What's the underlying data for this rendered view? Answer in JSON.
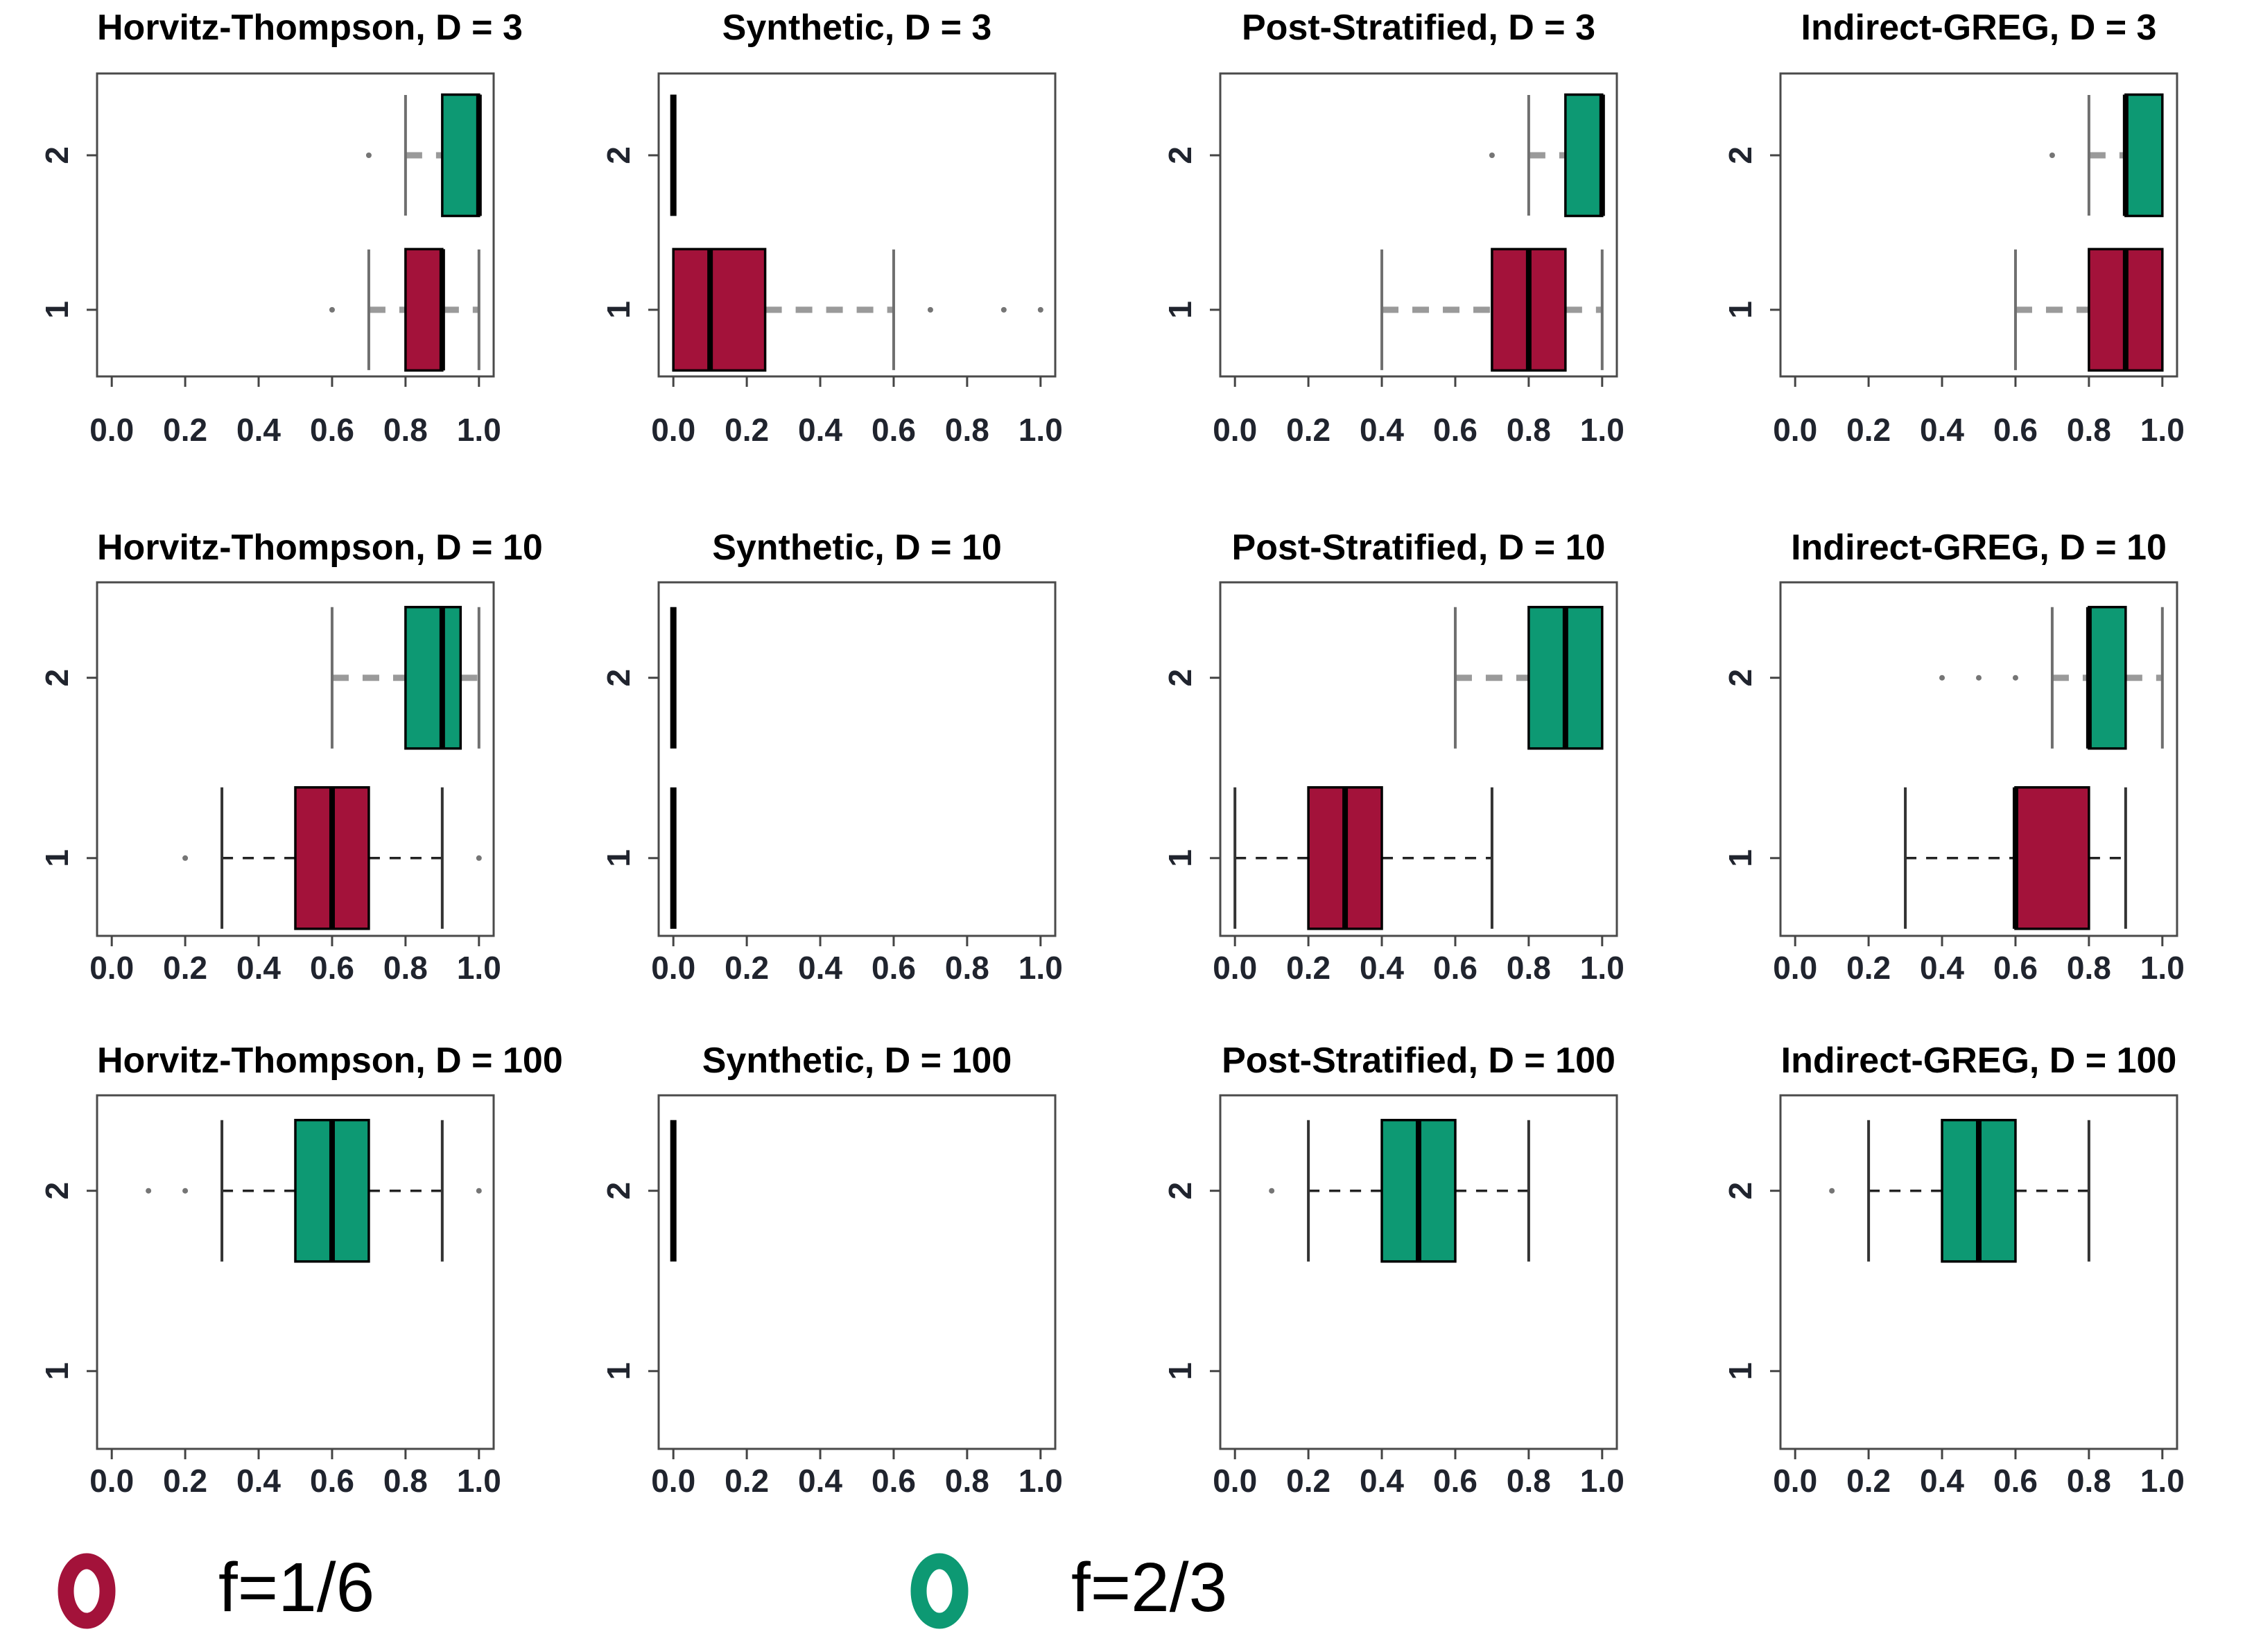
{
  "chart_data": {
    "type": "boxplot",
    "layout": "3x4 grid of horizontal boxplot panels",
    "x_ticks": [
      "0.0",
      "0.2",
      "0.4",
      "0.6",
      "0.8",
      "1.0"
    ],
    "x_range": [
      0,
      1
    ],
    "y_tick_labels": [
      "2",
      "1"
    ],
    "grid": false,
    "colors": {
      "f_1_6": "#A3123A",
      "f_2_3": "#0D9973",
      "degenerate": "#000000"
    },
    "legend": {
      "position": "bottom",
      "items": [
        {
          "label": "f=1/6",
          "color": "#A3123A"
        },
        {
          "label": "f=2/3",
          "color": "#0D9973"
        }
      ]
    },
    "panels": [
      {
        "title": "Horvitz-Thompson, D = 3",
        "estimator": "Horvitz-Thompson",
        "D": 3,
        "boxes": [
          {
            "group": "2",
            "series": "f=2/3",
            "color": "#0D9973",
            "q1": 0.9,
            "median": 1.0,
            "q3": 1.0,
            "whisker_low": 0.8,
            "whisker_high": null,
            "outliers": [
              0.7
            ],
            "whisker_style": "gray-thick"
          },
          {
            "group": "1",
            "series": "f=1/6",
            "color": "#A3123A",
            "q1": 0.8,
            "median": 0.9,
            "q3": 0.9,
            "whisker_low": 0.7,
            "whisker_high": 1.0,
            "outliers": [
              0.6
            ],
            "whisker_style": "gray-thick"
          }
        ]
      },
      {
        "title": "Synthetic, D = 3",
        "estimator": "Synthetic",
        "D": 3,
        "boxes": [
          {
            "group": "2",
            "series": "f=2/3",
            "degenerate": 0.0
          },
          {
            "group": "1",
            "series": "f=1/6",
            "color": "#A3123A",
            "q1": 0.0,
            "median": 0.1,
            "q3": 0.25,
            "whisker_low": null,
            "whisker_high": 0.6,
            "outliers": [
              0.7,
              0.9,
              1.0
            ],
            "whisker_style": "gray-thick"
          }
        ]
      },
      {
        "title": "Post-Stratified, D = 3",
        "estimator": "Post-Stratified",
        "D": 3,
        "boxes": [
          {
            "group": "2",
            "series": "f=2/3",
            "color": "#0D9973",
            "q1": 0.9,
            "median": 1.0,
            "q3": 1.0,
            "whisker_low": 0.8,
            "whisker_high": null,
            "outliers": [
              0.7
            ],
            "whisker_style": "gray-thick"
          },
          {
            "group": "1",
            "series": "f=1/6",
            "color": "#A3123A",
            "q1": 0.7,
            "median": 0.8,
            "q3": 0.9,
            "whisker_low": 0.4,
            "whisker_high": 1.0,
            "outliers": [],
            "whisker_style": "gray-thick"
          }
        ]
      },
      {
        "title": "Indirect-GREG, D = 3",
        "estimator": "Indirect-GREG",
        "D": 3,
        "boxes": [
          {
            "group": "2",
            "series": "f=2/3",
            "color": "#0D9973",
            "q1": 0.9,
            "median": 0.9,
            "q3": 1.0,
            "whisker_low": 0.8,
            "whisker_high": null,
            "outliers": [
              0.7
            ],
            "whisker_style": "gray-thick"
          },
          {
            "group": "1",
            "series": "f=1/6",
            "color": "#A3123A",
            "q1": 0.8,
            "median": 0.9,
            "q3": 1.0,
            "whisker_low": 0.6,
            "whisker_high": null,
            "outliers": [],
            "whisker_style": "gray-thick"
          }
        ]
      },
      {
        "title": "Horvitz-Thompson, D = 10",
        "estimator": "Horvitz-Thompson",
        "D": 10,
        "boxes": [
          {
            "group": "2",
            "series": "f=2/3",
            "color": "#0D9973",
            "q1": 0.8,
            "median": 0.9,
            "q3": 0.95,
            "whisker_low": 0.6,
            "whisker_high": 1.0,
            "outliers": [],
            "whisker_style": "gray-thick"
          },
          {
            "group": "1",
            "series": "f=1/6",
            "color": "#A3123A",
            "q1": 0.5,
            "median": 0.6,
            "q3": 0.7,
            "whisker_low": 0.3,
            "whisker_high": 0.9,
            "outliers": [
              0.2,
              1.0
            ],
            "whisker_style": "black-thin"
          }
        ]
      },
      {
        "title": "Synthetic, D = 10",
        "estimator": "Synthetic",
        "D": 10,
        "boxes": [
          {
            "group": "2",
            "series": "f=2/3",
            "degenerate": 0.0
          },
          {
            "group": "1",
            "series": "f=1/6",
            "degenerate": 0.0
          }
        ]
      },
      {
        "title": "Post-Stratified, D = 10",
        "estimator": "Post-Stratified",
        "D": 10,
        "boxes": [
          {
            "group": "2",
            "series": "f=2/3",
            "color": "#0D9973",
            "q1": 0.8,
            "median": 0.9,
            "q3": 1.0,
            "whisker_low": 0.6,
            "whisker_high": null,
            "outliers": [],
            "whisker_style": "gray-thick"
          },
          {
            "group": "1",
            "series": "f=1/6",
            "color": "#A3123A",
            "q1": 0.2,
            "median": 0.3,
            "q3": 0.4,
            "whisker_low": 0.0,
            "whisker_high": 0.7,
            "outliers": [],
            "whisker_style": "black-thin"
          }
        ]
      },
      {
        "title": "Indirect-GREG, D = 10",
        "estimator": "Indirect-GREG",
        "D": 10,
        "boxes": [
          {
            "group": "2",
            "series": "f=2/3",
            "color": "#0D9973",
            "q1": 0.8,
            "median": 0.8,
            "q3": 0.9,
            "whisker_low": 0.7,
            "whisker_high": 1.0,
            "outliers": [
              0.4,
              0.5,
              0.6
            ],
            "whisker_style": "gray-thick"
          },
          {
            "group": "1",
            "series": "f=1/6",
            "color": "#A3123A",
            "q1": 0.6,
            "median": 0.6,
            "q3": 0.8,
            "whisker_low": 0.3,
            "whisker_high": 0.9,
            "outliers": [],
            "whisker_style": "black-thin"
          }
        ]
      },
      {
        "title": "Horvitz-Thompson, D = 100",
        "estimator": "Horvitz-Thompson",
        "D": 100,
        "boxes": [
          {
            "group": "2",
            "series": "f=2/3",
            "color": "#0D9973",
            "q1": 0.5,
            "median": 0.6,
            "q3": 0.7,
            "whisker_low": 0.3,
            "whisker_high": 0.9,
            "outliers": [
              0.1,
              0.2,
              1.0
            ],
            "whisker_style": "black-thin"
          }
        ]
      },
      {
        "title": "Synthetic, D = 100",
        "estimator": "Synthetic",
        "D": 100,
        "boxes": [
          {
            "group": "2",
            "series": "f=2/3",
            "degenerate": 0.0
          }
        ]
      },
      {
        "title": "Post-Stratified, D = 100",
        "estimator": "Post-Stratified",
        "D": 100,
        "boxes": [
          {
            "group": "2",
            "series": "f=2/3",
            "color": "#0D9973",
            "q1": 0.4,
            "median": 0.5,
            "q3": 0.6,
            "whisker_low": 0.2,
            "whisker_high": 0.8,
            "outliers": [
              0.1
            ],
            "whisker_style": "black-thin"
          }
        ]
      },
      {
        "title": "Indirect-GREG, D = 100",
        "estimator": "Indirect-GREG",
        "D": 100,
        "boxes": [
          {
            "group": "2",
            "series": "f=2/3",
            "color": "#0D9973",
            "q1": 0.4,
            "median": 0.5,
            "q3": 0.6,
            "whisker_low": 0.2,
            "whisker_high": 0.8,
            "outliers": [
              0.1
            ],
            "whisker_style": "black-thin"
          }
        ]
      }
    ]
  }
}
